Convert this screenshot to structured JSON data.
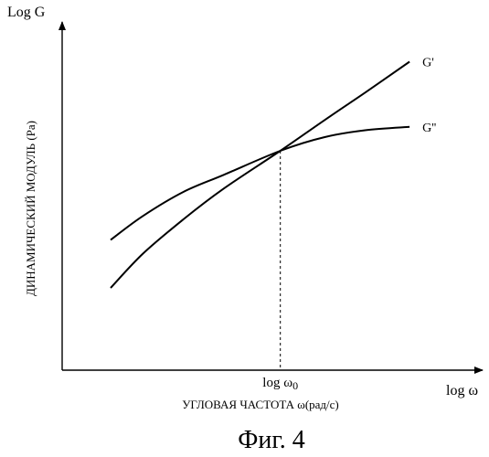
{
  "figure": {
    "caption": "Фиг. 4"
  },
  "chart_data": {
    "type": "line",
    "y_axis_title": "Log G",
    "x_axis_title": "log ω",
    "ylabel": "ДИНАМИЧЕСКИЙ МОДУЛЬ (Pa)",
    "xlabel": "УГЛОВАЯ ЧАСТОТА ω(рад/с)",
    "marker_label": "log ω",
    "marker_subscript": "0",
    "crossover": {
      "x": 0.54,
      "y": 0.64
    },
    "xlim": [
      0,
      1
    ],
    "ylim": [
      0,
      1
    ],
    "grid": false,
    "series": [
      {
        "name": "G'",
        "x": [
          0.12,
          0.2,
          0.3,
          0.4,
          0.54,
          0.65,
          0.75,
          0.86
        ],
        "y": [
          0.24,
          0.34,
          0.44,
          0.53,
          0.64,
          0.73,
          0.81,
          0.9
        ]
      },
      {
        "name": "G''",
        "x": [
          0.12,
          0.2,
          0.3,
          0.4,
          0.54,
          0.65,
          0.75,
          0.86
        ],
        "y": [
          0.38,
          0.45,
          0.52,
          0.57,
          0.64,
          0.68,
          0.7,
          0.71
        ]
      }
    ]
  },
  "colors": {
    "line": "#000000",
    "background": "#ffffff"
  }
}
